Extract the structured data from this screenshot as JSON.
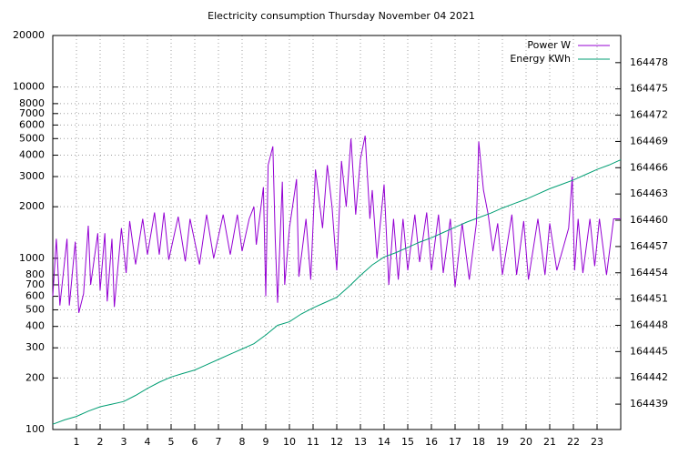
{
  "chart_data": {
    "type": "line",
    "title": "Electricity consumption Thursday November 04 2021",
    "x": [
      0.0,
      0.15,
      0.3,
      0.6,
      0.7,
      0.95,
      1.1,
      1.3,
      1.5,
      1.6,
      1.9,
      2.0,
      2.2,
      2.3,
      2.5,
      2.6,
      2.9,
      3.1,
      3.25,
      3.5,
      3.8,
      4.0,
      4.3,
      4.5,
      4.7,
      4.9,
      5.3,
      5.6,
      5.8,
      6.2,
      6.5,
      6.8,
      7.2,
      7.5,
      7.8,
      8.0,
      8.3,
      8.5,
      8.6,
      8.9,
      9.0,
      9.1,
      9.3,
      9.4,
      9.5,
      9.7,
      9.8,
      10.0,
      10.3,
      10.4,
      10.7,
      10.9,
      11.1,
      11.4,
      11.6,
      11.8,
      12.0,
      12.2,
      12.4,
      12.6,
      12.8,
      13.0,
      13.2,
      13.4,
      13.5,
      13.7,
      14.0,
      14.2,
      14.4,
      14.6,
      14.8,
      15.0,
      15.3,
      15.5,
      15.8,
      16.0,
      16.3,
      16.5,
      16.8,
      17.0,
      17.3,
      17.6,
      17.9,
      18.0,
      18.2,
      18.4,
      18.6,
      18.8,
      19.0,
      19.4,
      19.6,
      19.9,
      20.1,
      20.5,
      20.8,
      21.0,
      21.3,
      21.8,
      21.95,
      22.05,
      22.2,
      22.4,
      22.7,
      22.9,
      23.1,
      23.4,
      23.7,
      24.0
    ],
    "series": [
      {
        "name": "Power W",
        "color": "#9400d3",
        "axis": "y",
        "values": [
          600,
          1300,
          530,
          1300,
          530,
          1250,
          480,
          620,
          1550,
          700,
          1400,
          650,
          1400,
          560,
          1300,
          520,
          1500,
          820,
          1650,
          920,
          1700,
          1050,
          1850,
          1050,
          1850,
          980,
          1750,
          960,
          1700,
          920,
          1800,
          1000,
          1800,
          1050,
          1800,
          1100,
          1700,
          2000,
          1200,
          2600,
          600,
          3500,
          4500,
          1300,
          550,
          2800,
          700,
          1500,
          2900,
          780,
          1700,
          750,
          3300,
          1500,
          3500,
          2000,
          850,
          3700,
          2000,
          5000,
          1800,
          3800,
          5200,
          1700,
          2500,
          1000,
          2700,
          700,
          1700,
          750,
          1700,
          850,
          1800,
          950,
          1850,
          850,
          1800,
          820,
          1700,
          680,
          1600,
          750,
          1600,
          4800,
          2500,
          1800,
          1100,
          1600,
          800,
          1800,
          800,
          1650,
          750,
          1700,
          800,
          1600,
          850,
          1500,
          3000,
          850,
          1700,
          820,
          1700,
          900,
          1700,
          800,
          1700,
          1700
        ]
      },
      {
        "name": "Energy KWh",
        "color": "#009e73",
        "axis": "y2",
        "x": [
          0,
          0.5,
          1,
          1.5,
          2,
          2.5,
          3,
          3.5,
          4,
          4.5,
          5,
          5.5,
          6,
          6.5,
          7,
          7.5,
          8,
          8.5,
          9,
          9.5,
          10,
          10.5,
          11,
          11.5,
          12,
          12.5,
          13,
          13.5,
          14,
          14.5,
          15,
          15.5,
          16,
          16.5,
          17,
          17.5,
          18,
          18.5,
          19,
          19.5,
          20,
          20.5,
          21,
          21.5,
          22,
          22.5,
          23,
          23.5,
          24
        ],
        "values": [
          164436.7,
          164437.2,
          164437.6,
          164438.2,
          164438.7,
          164439.0,
          164439.3,
          164440.0,
          164440.8,
          164441.5,
          164442.1,
          164442.5,
          164442.9,
          164443.5,
          164444.1,
          164444.7,
          164445.3,
          164445.9,
          164446.9,
          164448.0,
          164448.4,
          164449.3,
          164450.0,
          164450.6,
          164451.2,
          164452.4,
          164453.7,
          164454.9,
          164455.8,
          164456.3,
          164456.9,
          164457.5,
          164458.0,
          164458.6,
          164459.2,
          164459.8,
          164460.3,
          164460.8,
          164461.4,
          164461.9,
          164462.4,
          164463.0,
          164463.6,
          164464.1,
          164464.6,
          164465.2,
          164465.8,
          164466.3,
          164466.9
        ]
      }
    ],
    "xlim": [
      0,
      24
    ],
    "xticks": [
      1,
      2,
      3,
      4,
      5,
      6,
      7,
      8,
      9,
      10,
      11,
      12,
      13,
      14,
      15,
      16,
      17,
      18,
      19,
      20,
      21,
      22,
      23
    ],
    "ylim": [
      100,
      20000
    ],
    "ylog": true,
    "yticks": [
      100,
      200,
      300,
      400,
      500,
      600,
      700,
      800,
      1000,
      2000,
      3000,
      4000,
      5000,
      6000,
      7000,
      8000,
      10000,
      20000
    ],
    "y2lim": [
      164436.1,
      164481.1
    ],
    "y2ticks": [
      164439,
      164442,
      164445,
      164448,
      164451,
      164454,
      164457,
      164460,
      164463,
      164466,
      164469,
      164472,
      164475,
      164478
    ],
    "grid": true,
    "legend": "top-right"
  }
}
